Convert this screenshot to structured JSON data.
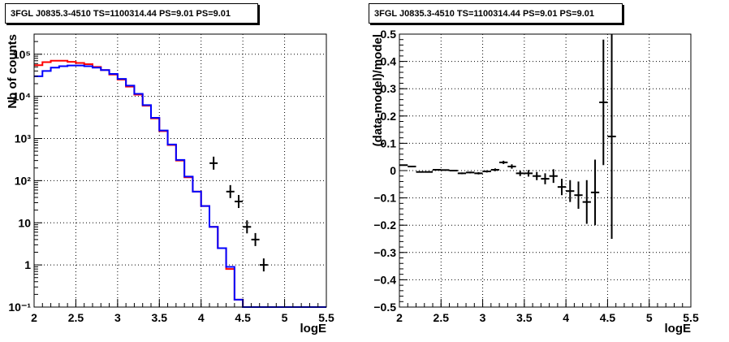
{
  "chart_data": [
    {
      "type": "line",
      "title": "3FGL J0835.3-4510 TS=1100314.44 PS=9.01 PS=9.01",
      "xlabel": "logE",
      "ylabel": "Nb of counts",
      "xlim": [
        2,
        5.5
      ],
      "ylim": [
        0.1,
        300000
      ],
      "yscale": "log",
      "grid": true,
      "x_ticks": [
        "2",
        "2.5",
        "3",
        "3.5",
        "4",
        "4.5",
        "5",
        "5.5"
      ],
      "y_ticks": [
        "10⁻¹",
        "1",
        "10",
        "10²",
        "10³",
        "10⁴",
        "10⁵"
      ],
      "bin_edges": [
        2.0,
        2.1,
        2.2,
        2.3,
        2.4,
        2.5,
        2.6,
        2.7,
        2.8,
        2.9,
        3.0,
        3.1,
        3.2,
        3.3,
        3.4,
        3.5,
        3.6,
        3.7,
        3.8,
        3.9,
        4.0,
        4.1,
        4.2,
        4.3,
        4.4,
        4.5,
        4.6,
        4.7,
        4.8,
        4.9,
        5.0,
        5.1,
        5.2,
        5.3,
        5.4,
        5.5
      ],
      "series": [
        {
          "color": "#ff0000",
          "values": [
            55000,
            65000,
            70000,
            70000,
            66000,
            62000,
            58000,
            50000,
            42000,
            33000,
            25000,
            17000,
            11000,
            6000,
            3000,
            1500,
            700,
            300,
            120,
            55,
            25,
            8,
            2.5,
            0.8,
            0.15,
            0.1,
            0.1,
            0.1,
            0.1,
            0.1,
            0.1,
            0.1,
            0.1,
            0.1,
            0.1
          ]
        },
        {
          "color": "#0000ff",
          "values": [
            30000,
            40000,
            48000,
            52000,
            54000,
            54000,
            52000,
            48000,
            42000,
            34000,
            26000,
            18000,
            11500,
            6200,
            3100,
            1550,
            720,
            310,
            125,
            55,
            25,
            8,
            2.5,
            0.9,
            0.15,
            0.1,
            0.1,
            0.1,
            0.1,
            0.1,
            0.1,
            0.1,
            0.1,
            0.1,
            0.1
          ]
        },
        {
          "color": "#000000",
          "points": [
            {
              "x": 4.15,
              "y": 260
            },
            {
              "x": 4.35,
              "y": 55
            },
            {
              "x": 4.45,
              "y": 32
            },
            {
              "x": 4.55,
              "y": 8
            },
            {
              "x": 4.65,
              "y": 4
            },
            {
              "x": 4.75,
              "y": 1
            }
          ]
        }
      ]
    },
    {
      "type": "scatter",
      "title": "3FGL J0835.3-4510 TS=1100314.44 PS=9.01 PS=9.01",
      "xlabel": "logE",
      "ylabel": "(data-model)/model",
      "xlim": [
        2,
        5.5
      ],
      "ylim": [
        -0.5,
        0.5
      ],
      "grid": true,
      "x_ticks": [
        "2",
        "2.5",
        "3",
        "3.5",
        "4",
        "4.5",
        "5",
        "5.5"
      ],
      "y_ticks": [
        "−0.5",
        "−0.4",
        "−0.3",
        "−0.2",
        "−0.1",
        "0",
        "0.1",
        "0.2",
        "0.3",
        "0.4",
        "0.5"
      ],
      "points": [
        {
          "x": 2.05,
          "y": 0.02,
          "err": 0.002
        },
        {
          "x": 2.15,
          "y": 0.015,
          "err": 0.002
        },
        {
          "x": 2.25,
          "y": -0.005,
          "err": 0.002
        },
        {
          "x": 2.35,
          "y": -0.005,
          "err": 0.002
        },
        {
          "x": 2.45,
          "y": 0.003,
          "err": 0.002
        },
        {
          "x": 2.55,
          "y": 0.002,
          "err": 0.002
        },
        {
          "x": 2.65,
          "y": 0.0,
          "err": 0.002
        },
        {
          "x": 2.75,
          "y": -0.01,
          "err": 0.003
        },
        {
          "x": 2.85,
          "y": -0.007,
          "err": 0.003
        },
        {
          "x": 2.95,
          "y": -0.01,
          "err": 0.004
        },
        {
          "x": 3.05,
          "y": -0.003,
          "err": 0.004
        },
        {
          "x": 3.15,
          "y": 0.003,
          "err": 0.005
        },
        {
          "x": 3.25,
          "y": 0.03,
          "err": 0.006
        },
        {
          "x": 3.35,
          "y": 0.015,
          "err": 0.008
        },
        {
          "x": 3.45,
          "y": -0.01,
          "err": 0.01
        },
        {
          "x": 3.55,
          "y": -0.01,
          "err": 0.012
        },
        {
          "x": 3.65,
          "y": -0.02,
          "err": 0.015
        },
        {
          "x": 3.75,
          "y": -0.03,
          "err": 0.02
        },
        {
          "x": 3.85,
          "y": -0.02,
          "err": 0.025
        },
        {
          "x": 3.95,
          "y": -0.06,
          "err": 0.03
        },
        {
          "x": 4.05,
          "y": -0.075,
          "err": 0.04
        },
        {
          "x": 4.15,
          "y": -0.09,
          "err": 0.05
        },
        {
          "x": 4.25,
          "y": -0.115,
          "err": 0.08
        },
        {
          "x": 4.35,
          "y": -0.08,
          "err": 0.12
        },
        {
          "x": 4.45,
          "y": 0.25,
          "err": 0.23
        },
        {
          "x": 4.55,
          "y": 0.125,
          "err": 0.375
        }
      ]
    }
  ]
}
